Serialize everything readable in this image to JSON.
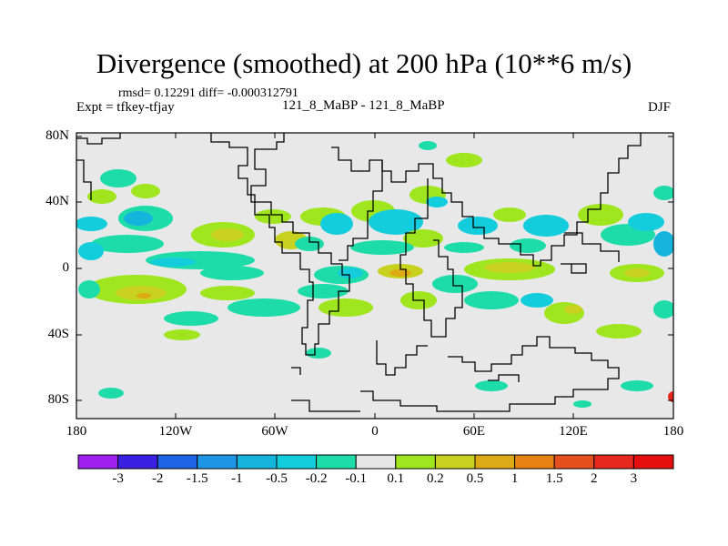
{
  "title": "Divergence (smoothed) at 200 hPa (10**6 m/s)",
  "stats_line": "rmsd= 0.12291 diff= -0.000312791",
  "case_line": "121_8_MaBP - 121_8_MaBP",
  "expt_line": "Expt = tfkey-tfjay",
  "season": "DJF",
  "lat_labels": [
    "80N",
    "40N",
    "0",
    "40S",
    "80S"
  ],
  "lon_labels": [
    "180",
    "120W",
    "60W",
    "0",
    "60E",
    "120E",
    "180"
  ],
  "colorbar": {
    "labels": [
      "-3",
      "-2",
      "-1.5",
      "-1",
      "-0.5",
      "-0.2",
      "-0.1",
      "0.1",
      "0.2",
      "0.5",
      "1",
      "1.5",
      "2",
      "3"
    ],
    "colors": [
      "#a020f0",
      "#3a20e0",
      "#1e64e6",
      "#1e96e6",
      "#14b4dc",
      "#14cddc",
      "#1edcaa",
      "#e6e6e6",
      "#a0e61e",
      "#c8d21e",
      "#dcaa14",
      "#e68214",
      "#e6501e",
      "#e6281e",
      "#e60f0f"
    ]
  },
  "map_colors": {
    "background": "#e8e8e8",
    "coast": "#000000"
  }
}
